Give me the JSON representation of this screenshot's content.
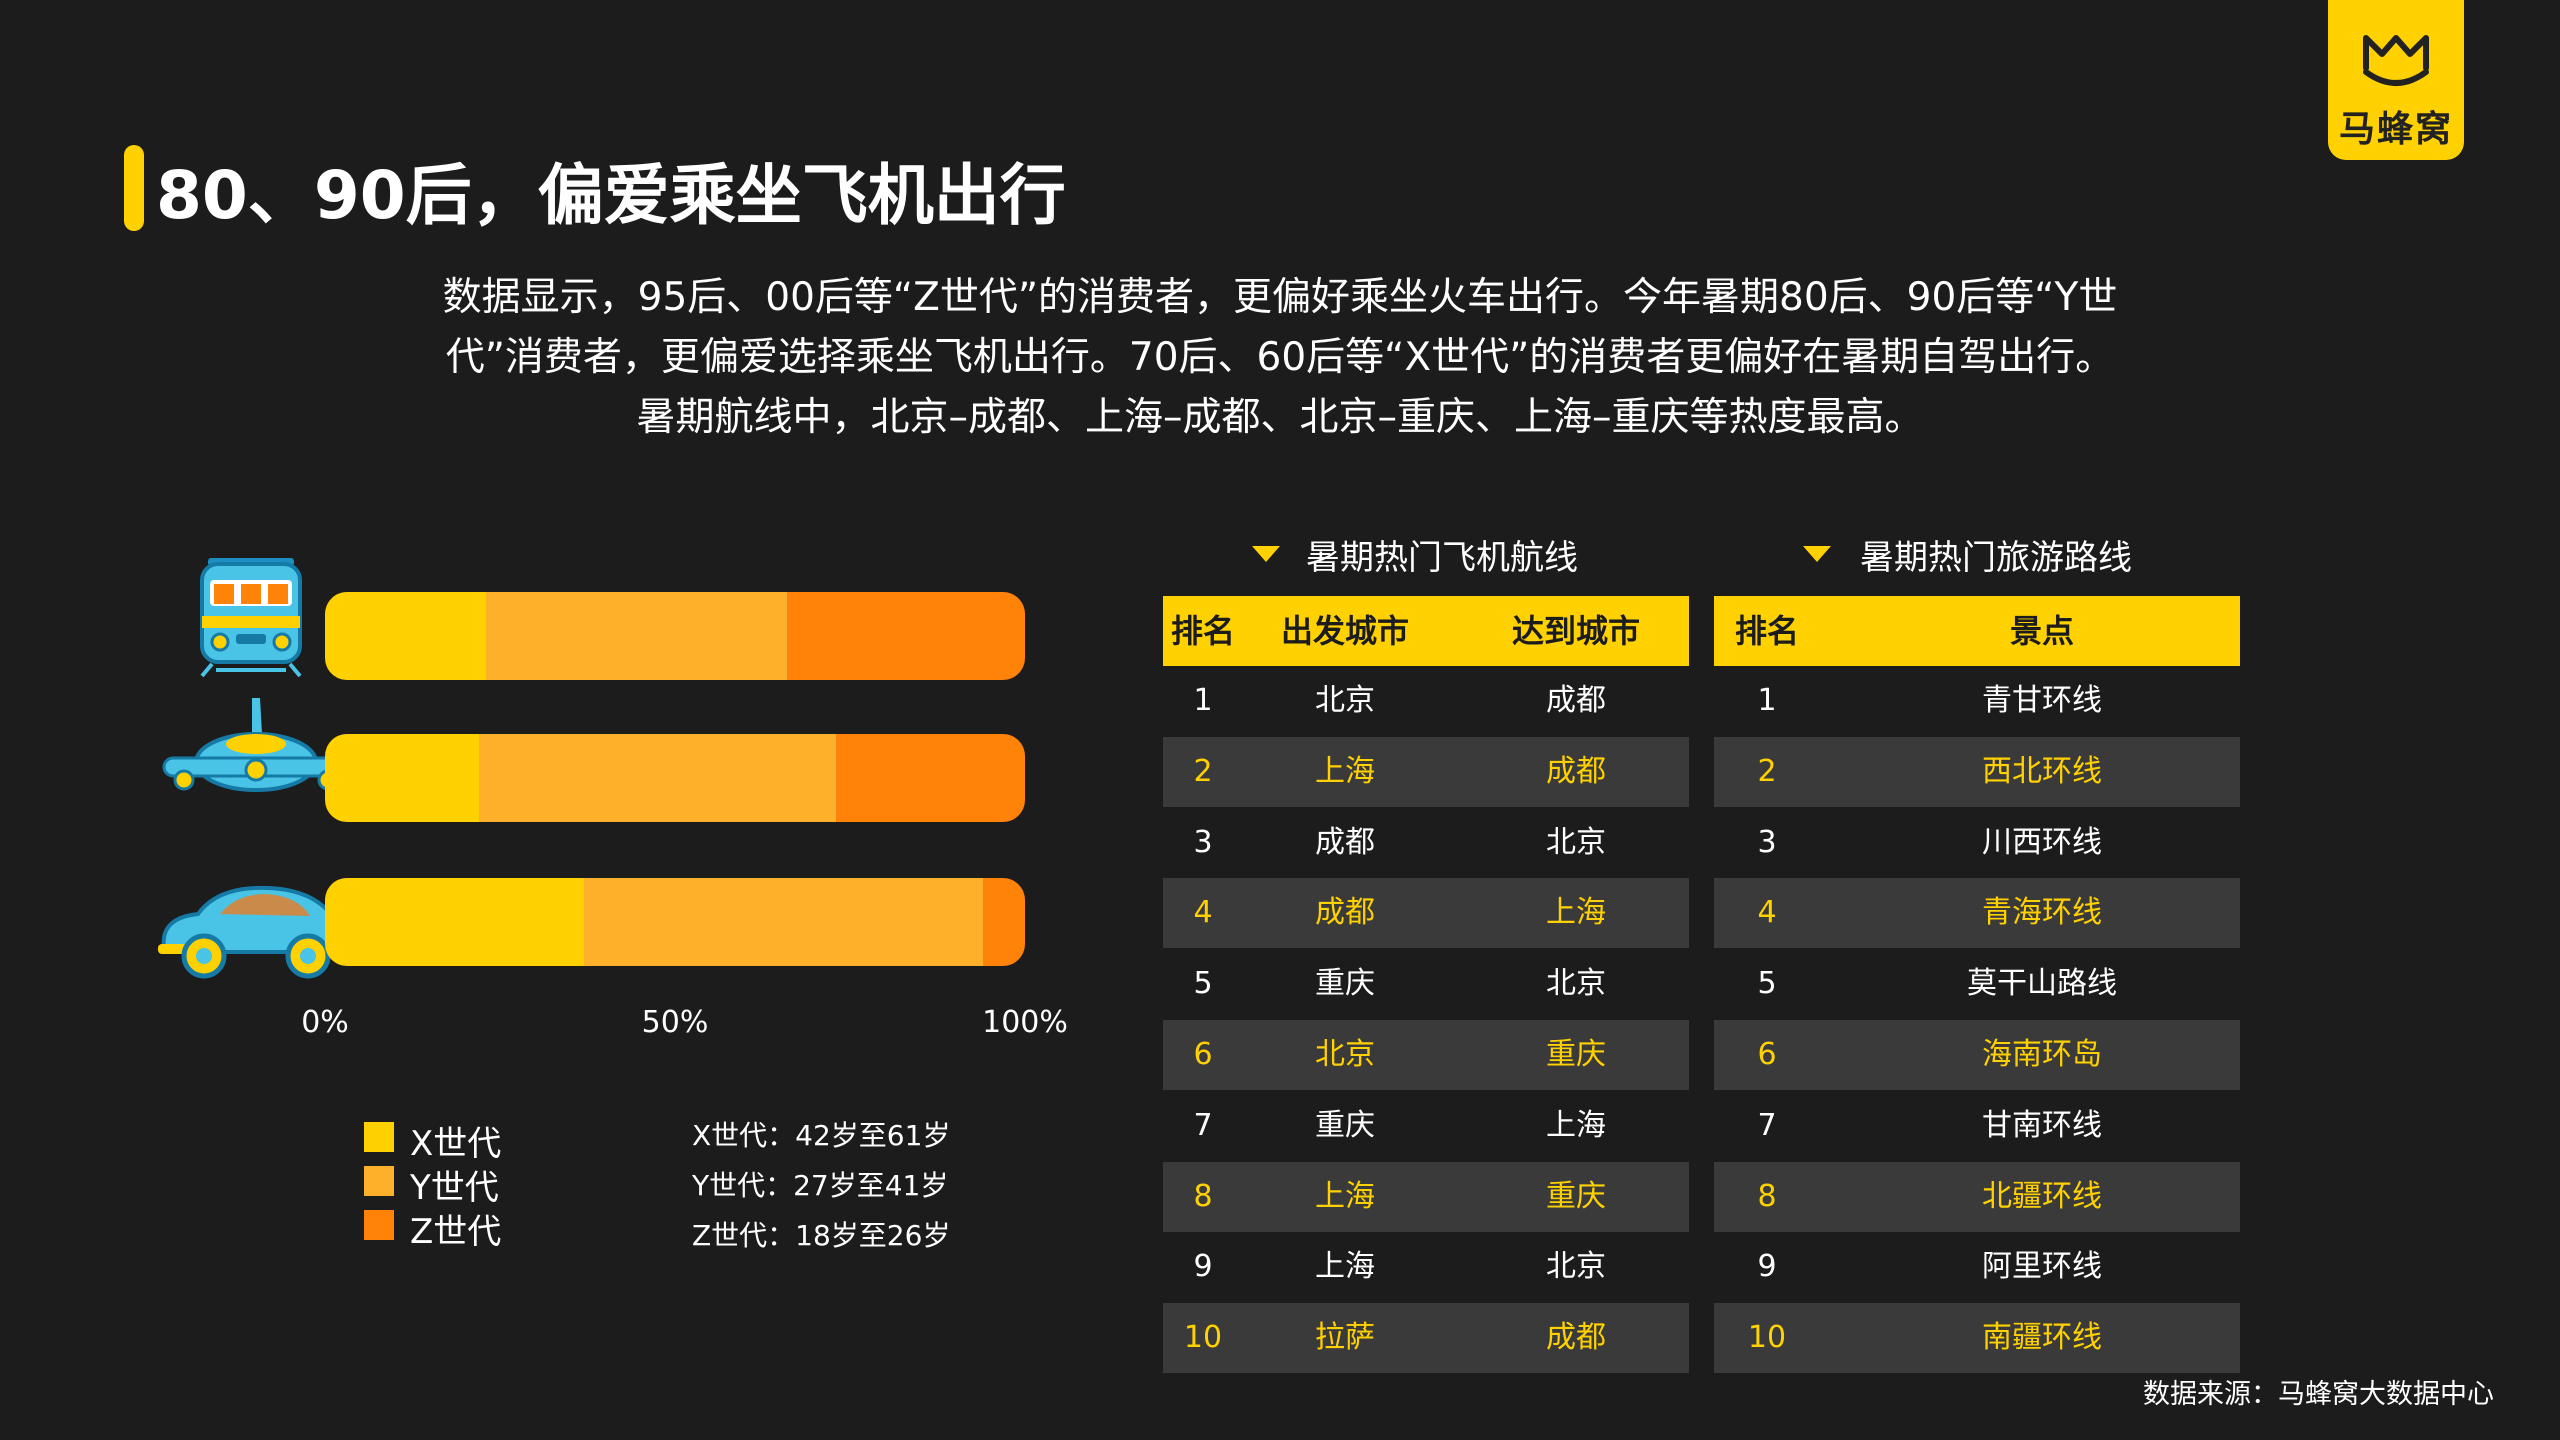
{
  "brand": {
    "logo_text": "马蜂窝"
  },
  "title": "80、90后，偏爱乘坐飞机出行",
  "description": [
    "数据显示，95后、00后等“Z世代”的消费者，更偏好乘坐火车出行。今年暑期80后、90后等“Y世",
    "代”消费者，更偏爱选择乘坐飞机出行。70后、60后等“X世代”的消费者更偏好在暑期自驾出行。",
    "暑期航线中，北京–成都、上海–成都、北京–重庆、上海–重庆等热度最高。"
  ],
  "colors": {
    "accent": "#ffd100",
    "x_gen": "#ffd100",
    "y_gen": "#fdb12b",
    "z_gen": "#ff8308",
    "background": "#1c1c1c"
  },
  "chart_data": {
    "type": "bar",
    "orientation": "horizontal",
    "stacked": true,
    "categories": [
      "train-icon",
      "airplane-icon",
      "car-icon"
    ],
    "series": [
      {
        "name": "X世代",
        "values": [
          23,
          22,
          37
        ]
      },
      {
        "name": "Y世代",
        "values": [
          43,
          51,
          57
        ]
      },
      {
        "name": "Z世代",
        "values": [
          34,
          27,
          6
        ]
      }
    ],
    "xticks": [
      "0%",
      "50%",
      "100%"
    ],
    "xlim": [
      0,
      100
    ],
    "grid": false,
    "legend_position": "bottom-left"
  },
  "legend": [
    "X世代",
    "Y世代",
    "Z世代"
  ],
  "generation_notes": [
    "X世代：42岁至61岁",
    "Y世代：27岁至41岁",
    "Z世代：18岁至26岁"
  ],
  "flights_table": {
    "heading": "暑期热门飞机航线",
    "headers": [
      "排名",
      "出发城市",
      "达到城市"
    ],
    "rows": [
      [
        "1",
        "北京",
        "成都"
      ],
      [
        "2",
        "上海",
        "成都"
      ],
      [
        "3",
        "成都",
        "北京"
      ],
      [
        "4",
        "成都",
        "上海"
      ],
      [
        "5",
        "重庆",
        "北京"
      ],
      [
        "6",
        "北京",
        "重庆"
      ],
      [
        "7",
        "重庆",
        "上海"
      ],
      [
        "8",
        "上海",
        "重庆"
      ],
      [
        "9",
        "上海",
        "北京"
      ],
      [
        "10",
        "拉萨",
        "成都"
      ]
    ]
  },
  "routes_table": {
    "heading": "暑期热门旅游路线",
    "headers": [
      "排名",
      "景点"
    ],
    "rows": [
      [
        "1",
        "青甘环线"
      ],
      [
        "2",
        "西北环线"
      ],
      [
        "3",
        "川西环线"
      ],
      [
        "4",
        "青海环线"
      ],
      [
        "5",
        "莫干山路线"
      ],
      [
        "6",
        "海南环岛"
      ],
      [
        "7",
        "甘南环线"
      ],
      [
        "8",
        "北疆环线"
      ],
      [
        "9",
        "阿里环线"
      ],
      [
        "10",
        "南疆环线"
      ]
    ]
  },
  "source": "数据来源：马蜂窝大数据中心"
}
